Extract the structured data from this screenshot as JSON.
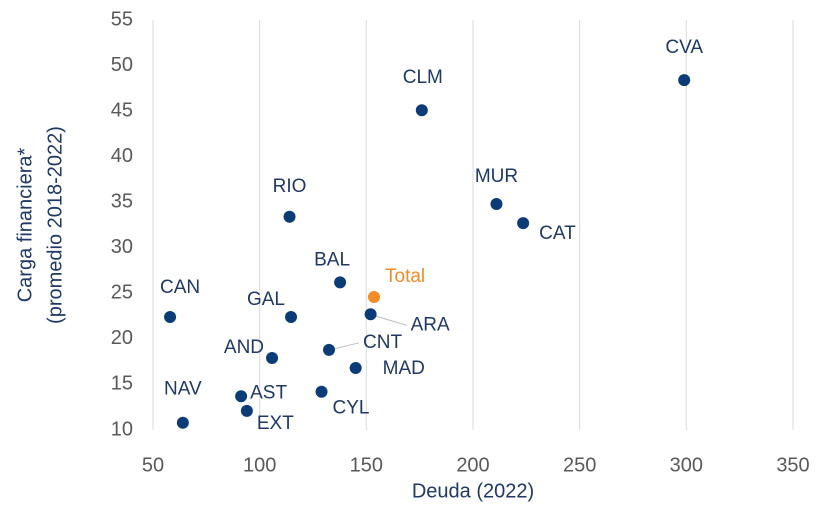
{
  "chart_data": {
    "type": "scatter",
    "xlabel": "Deuda (2022)",
    "ylabel": [
      "Carga financiera*",
      "(promedio 2018-2022)"
    ],
    "xlim": [
      50,
      350
    ],
    "xticks": [
      50,
      100,
      150,
      200,
      250,
      300,
      350
    ],
    "ylim": [
      10,
      55
    ],
    "yticks": [
      10,
      15,
      20,
      25,
      30,
      35,
      40,
      45,
      50,
      55
    ],
    "grid": "x",
    "points": [
      {
        "label": "CVA",
        "x": 299,
        "y": 48.4,
        "color": "#0b3c78"
      },
      {
        "label": "CLM",
        "x": 176,
        "y": 45.1,
        "color": "#0b3c78"
      },
      {
        "label": "MUR",
        "x": 211,
        "y": 34.8,
        "color": "#0b3c78"
      },
      {
        "label": "CAT",
        "x": 223.5,
        "y": 32.7,
        "color": "#0b3c78"
      },
      {
        "label": "RIO",
        "x": 114,
        "y": 33.4,
        "color": "#0b3c78"
      },
      {
        "label": "BAL",
        "x": 137.7,
        "y": 26.2,
        "color": "#0b3c78"
      },
      {
        "label": "Total",
        "x": 153.6,
        "y": 24.6,
        "color": "#f28c28"
      },
      {
        "label": "CAN",
        "x": 58,
        "y": 22.4,
        "color": "#0b3c78"
      },
      {
        "label": "GAL",
        "x": 114.7,
        "y": 22.4,
        "color": "#0b3c78"
      },
      {
        "label": "ARA",
        "x": 152,
        "y": 22.7,
        "color": "#0b3c78"
      },
      {
        "label": "AND",
        "x": 105.8,
        "y": 17.9,
        "color": "#0b3c78"
      },
      {
        "label": "CNT",
        "x": 132.5,
        "y": 18.8,
        "color": "#0b3c78"
      },
      {
        "label": "MAD",
        "x": 145,
        "y": 16.8,
        "color": "#0b3c78"
      },
      {
        "label": "CYL",
        "x": 129,
        "y": 14.2,
        "color": "#0b3c78"
      },
      {
        "label": "AST",
        "x": 91.3,
        "y": 13.7,
        "color": "#0b3c78"
      },
      {
        "label": "EXT",
        "x": 94,
        "y": 12.1,
        "color": "#0b3c78"
      },
      {
        "label": "NAV",
        "x": 64,
        "y": 10.8,
        "color": "#0b3c78"
      }
    ]
  }
}
